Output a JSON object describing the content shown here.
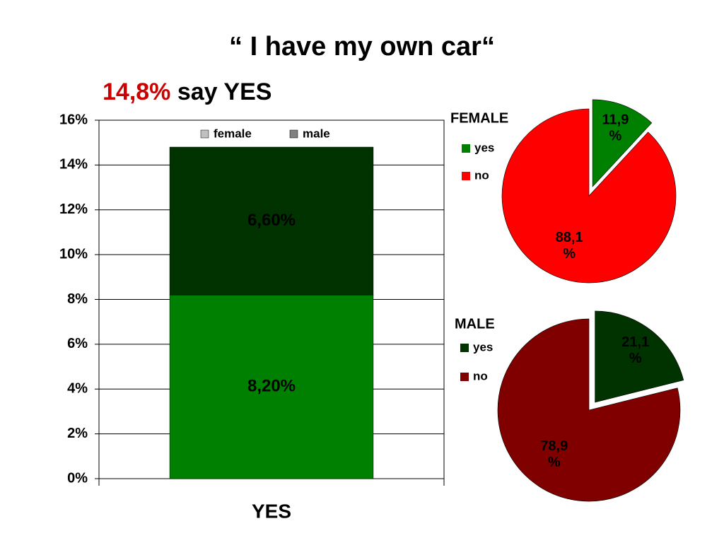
{
  "header": {
    "title": "“ I have my own car“",
    "subtitle_highlight": "14,8%",
    "subtitle_rest": "say YES",
    "highlight_color": "#cc0000"
  },
  "chart_data": [
    {
      "type": "bar",
      "stacked": true,
      "categories": [
        "YES"
      ],
      "series": [
        {
          "name": "female",
          "color": "#008000",
          "legend_color": "#c0c0c0",
          "label_color": "#000000",
          "values": [
            8.2
          ],
          "value_labels": [
            "8,20%"
          ]
        },
        {
          "name": "male",
          "color": "#003300",
          "legend_color": "#808080",
          "label_color": "#ffffff",
          "values": [
            6.6
          ],
          "value_labels": [
            "6,60%"
          ]
        }
      ],
      "ylim": [
        0,
        16
      ],
      "yticks": [
        {
          "value": 0,
          "label": "0%"
        },
        {
          "value": 2,
          "label": "2%"
        },
        {
          "value": 4,
          "label": "4%"
        },
        {
          "value": 6,
          "label": "6%"
        },
        {
          "value": 8,
          "label": "8%"
        },
        {
          "value": 10,
          "label": "10%"
        },
        {
          "value": 12,
          "label": "12%"
        },
        {
          "value": 14,
          "label": "14%"
        },
        {
          "value": 16,
          "label": "16%"
        }
      ],
      "grid": true
    },
    {
      "type": "pie",
      "title": "FEMALE",
      "categories": [
        "yes",
        "no"
      ],
      "values": [
        11.9,
        88.1
      ],
      "value_labels": [
        "11,9 %",
        "88,1 %"
      ],
      "colors": [
        "#008000",
        "#ff0000"
      ],
      "label_color": "#000000"
    },
    {
      "type": "pie",
      "title": "MALE",
      "categories": [
        "yes",
        "no"
      ],
      "values": [
        21.1,
        78.9
      ],
      "value_labels": [
        "21,1 %",
        "78,9 %"
      ],
      "colors": [
        "#003300",
        "#800000"
      ],
      "label_color": "#ffffff"
    }
  ]
}
